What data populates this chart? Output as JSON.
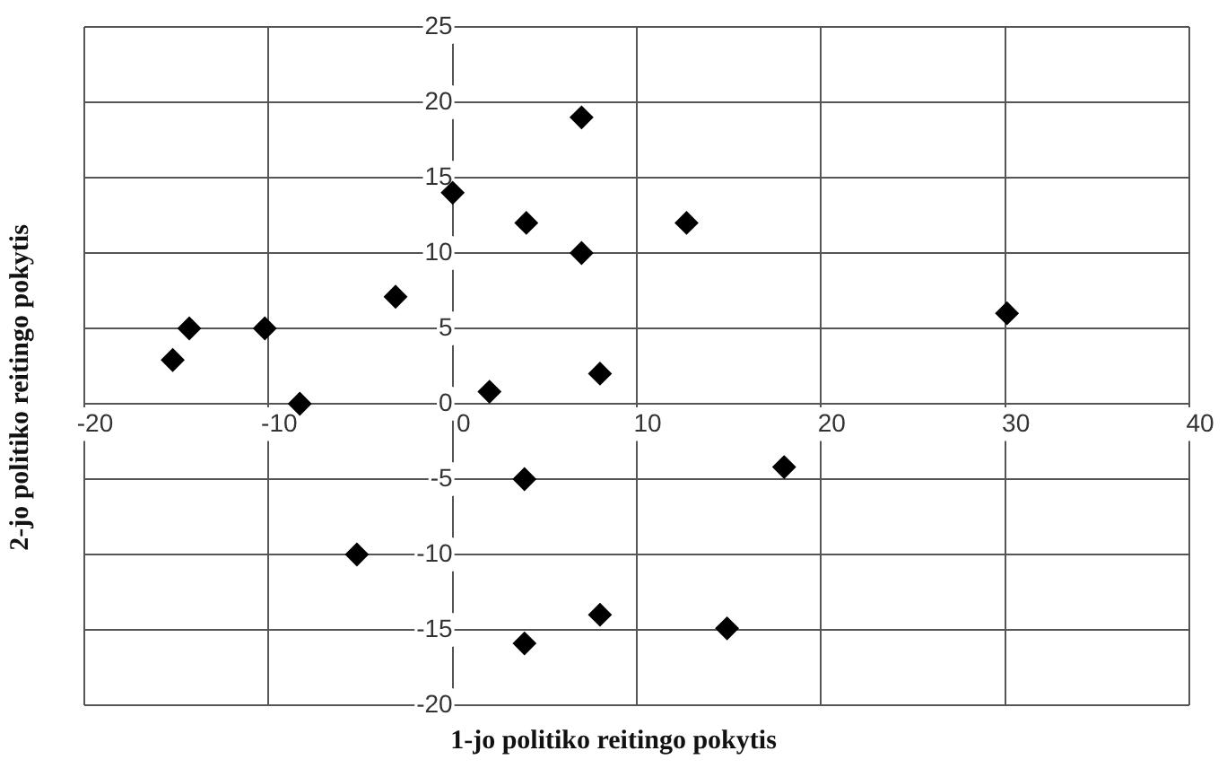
{
  "chart_data": {
    "type": "scatter",
    "xlabel": "1-jo politiko reitingo pokytis",
    "ylabel": "2-jo politiko reitingo pokytis",
    "x": [
      7,
      0,
      4,
      12.7,
      7,
      -3.1,
      -14.3,
      -10.2,
      -15.2,
      30.1,
      8,
      2,
      -8.3,
      3.9,
      18,
      -5.2,
      3.9,
      8,
      14.9
    ],
    "values": [
      19,
      14,
      12,
      12,
      10,
      7.1,
      5,
      5,
      2.9,
      6,
      2,
      0.8,
      0,
      -5,
      -4.2,
      -10,
      -15.9,
      -14,
      -14.9
    ],
    "color": "#000000",
    "marker": "diamond",
    "grid": true,
    "xlim": [
      -20,
      40
    ],
    "xticks": [
      -20,
      -10,
      0,
      10,
      20,
      30,
      40
    ],
    "ylim": [
      -20,
      25
    ],
    "yticks": [
      -20,
      -15,
      -10,
      -5,
      0,
      5,
      10,
      15,
      20,
      25
    ]
  }
}
